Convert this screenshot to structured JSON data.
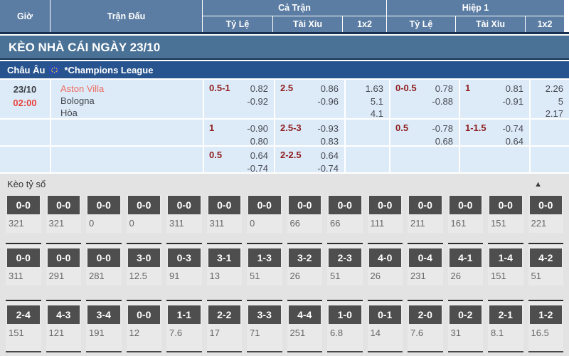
{
  "colors": {
    "header_bg": "#5b7da3",
    "banner_bg": "#4a7296",
    "league_bg": "#27538e",
    "row_bg": "#ddeaf8",
    "handicap_color": "#8f1d1d",
    "time_color": "#e8433c",
    "home_team_color": "#ee6c60",
    "odds_text_color": "#474b53",
    "section_bg": "#e3e3e3",
    "score_box_bg": "#4e4e4e"
  },
  "table_header": {
    "time": "Giờ",
    "match": "Trận Đấu",
    "full_time": "Cả Trận",
    "first_half": "Hiệp 1",
    "handicap": "Tỷ Lệ",
    "over_under": "Tài Xỉu",
    "one_x_two": "1x2"
  },
  "banner": {
    "title": "KÈO NHÀ CÁI NGÀY 23/10"
  },
  "league_bar": {
    "region": "Châu Âu",
    "flag_icon": "eu-flag",
    "league": "*Champions League"
  },
  "match": {
    "date": "23/10",
    "time": "02:00",
    "teams": [
      "Aston Villa",
      "Bologna"
    ],
    "draw_label": "Hòa",
    "odds_rows": [
      {
        "ft_handicap": {
          "line": "0.5-1",
          "top": "0.82",
          "bottom": "-0.92"
        },
        "ft_ou": {
          "line": "2.5",
          "top": "0.86",
          "bottom": "-0.96"
        },
        "ft_1x2": [
          "1.63",
          "5.1",
          "4.1"
        ],
        "h1_handicap": {
          "line": "0-0.5",
          "top": "0.78",
          "bottom": "-0.88"
        },
        "h1_ou": {
          "line": "1",
          "top": "0.81",
          "bottom": "-0.91"
        },
        "h1_1x2": [
          "2.26",
          "5",
          "2.17"
        ]
      },
      {
        "ft_handicap": {
          "line": "1",
          "top": "-0.90",
          "bottom": "0.80"
        },
        "ft_ou": {
          "line": "2.5-3",
          "top": "-0.93",
          "bottom": "0.83"
        },
        "ft_1x2": [],
        "h1_handicap": {
          "line": "0.5",
          "top": "-0.78",
          "bottom": "0.68"
        },
        "h1_ou": {
          "line": "1-1.5",
          "top": "-0.74",
          "bottom": "0.64"
        },
        "h1_1x2": []
      },
      {
        "ft_handicap": {
          "line": "0.5",
          "top": "0.64",
          "bottom": "-0.74"
        },
        "ft_ou": {
          "line": "2-2.5",
          "top": "0.64",
          "bottom": "-0.74"
        },
        "ft_1x2": [],
        "h1_handicap": null,
        "h1_ou": null,
        "h1_1x2": []
      }
    ]
  },
  "correct_score": {
    "title": "Kèo tỷ số",
    "collapse_icon": "▲",
    "rows": [
      {
        "cells": [
          {
            "score": "0-0",
            "odds": "321"
          },
          {
            "score": "0-0",
            "odds": "321"
          },
          {
            "score": "0-0",
            "odds": "0"
          },
          {
            "score": "0-0",
            "odds": "0"
          },
          {
            "score": "0-0",
            "odds": "311"
          },
          {
            "score": "0-0",
            "odds": "311"
          },
          {
            "score": "0-0",
            "odds": "0"
          },
          {
            "score": "0-0",
            "odds": "66"
          },
          {
            "score": "0-0",
            "odds": "66"
          },
          {
            "score": "0-0",
            "odds": "111"
          },
          {
            "score": "0-0",
            "odds": "211"
          },
          {
            "score": "0-0",
            "odds": "161"
          },
          {
            "score": "0-0",
            "odds": "151"
          },
          {
            "score": "0-0",
            "odds": "221"
          }
        ]
      },
      {
        "cells": [
          {
            "score": "0-0",
            "odds": "311"
          },
          {
            "score": "0-0",
            "odds": "291"
          },
          {
            "score": "0-0",
            "odds": "281"
          },
          {
            "score": "3-0",
            "odds": "12.5"
          },
          {
            "score": "0-3",
            "odds": "91"
          },
          {
            "score": "3-1",
            "odds": "13"
          },
          {
            "score": "1-3",
            "odds": "51"
          },
          {
            "score": "3-2",
            "odds": "26"
          },
          {
            "score": "2-3",
            "odds": "51"
          },
          {
            "score": "4-0",
            "odds": "26"
          },
          {
            "score": "0-4",
            "odds": "231"
          },
          {
            "score": "4-1",
            "odds": "26"
          },
          {
            "score": "1-4",
            "odds": "151"
          },
          {
            "score": "4-2",
            "odds": "51"
          }
        ]
      },
      {
        "cells": [
          {
            "score": "2-4",
            "odds": "151"
          },
          {
            "score": "4-3",
            "odds": "121"
          },
          {
            "score": "3-4",
            "odds": "191"
          },
          {
            "score": "0-0",
            "odds": "12"
          },
          {
            "score": "1-1",
            "odds": "7.6"
          },
          {
            "score": "2-2",
            "odds": "17"
          },
          {
            "score": "3-3",
            "odds": "71"
          },
          {
            "score": "4-4",
            "odds": "251"
          },
          {
            "score": "1-0",
            "odds": "6.8"
          },
          {
            "score": "0-1",
            "odds": "14"
          },
          {
            "score": "2-0",
            "odds": "7.6"
          },
          {
            "score": "0-2",
            "odds": "31"
          },
          {
            "score": "2-1",
            "odds": "8.1"
          },
          {
            "score": "1-2",
            "odds": "16.5"
          }
        ]
      }
    ]
  }
}
